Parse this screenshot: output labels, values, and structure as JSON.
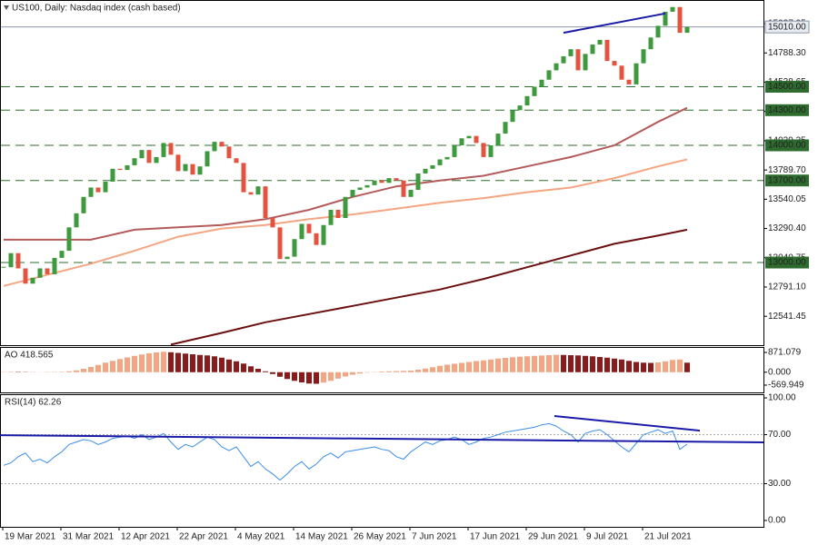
{
  "chart_data": {
    "type": "candlestick",
    "title": "US100, Daily:  Nasdaq index (cash based)",
    "categories": [
      "19 Mar 2021",
      null,
      null,
      null,
      null,
      null,
      null,
      null,
      "31 Mar 2021",
      null,
      null,
      null,
      null,
      null,
      null,
      null,
      "12 Apr 2021",
      null,
      null,
      null,
      null,
      null,
      null,
      null,
      "22 Apr 2021",
      null,
      null,
      null,
      null,
      null,
      null,
      null,
      "4 May 2021",
      null,
      null,
      null,
      null,
      null,
      null,
      null,
      "14 May 2021",
      null,
      null,
      null,
      null,
      null,
      null,
      null,
      "26 May 2021",
      null,
      null,
      null,
      null,
      null,
      null,
      null,
      "7 Jun 2021",
      null,
      null,
      null,
      null,
      null,
      null,
      null,
      "17 Jun 2021",
      null,
      null,
      null,
      null,
      null,
      null,
      null,
      "29 Jun 2021",
      null,
      null,
      null,
      null,
      null,
      null,
      null,
      "9 Jul 2021",
      null,
      null,
      null,
      null,
      null,
      null,
      null,
      "21 Jul 2021",
      null,
      null,
      null,
      null,
      null,
      null
    ],
    "close": [
      12960,
      13080,
      12950,
      12820,
      12870,
      12950,
      12900,
      13040,
      13100,
      13300,
      13420,
      13560,
      13640,
      13600,
      13690,
      13800,
      13790,
      13830,
      13890,
      13960,
      13850,
      13900,
      14020,
      13920,
      13780,
      13840,
      13750,
      13820,
      13950,
      14030,
      13990,
      13890,
      13850,
      13600,
      13580,
      13650,
      13380,
      13300,
      13030,
      13050,
      13200,
      13330,
      13250,
      13150,
      13320,
      13450,
      13380,
      13560,
      13620,
      13640,
      13660,
      13700,
      13680,
      13720,
      13700,
      13560,
      13620,
      13760,
      13800,
      13830,
      13880,
      13900,
      14000,
      14060,
      14080,
      14020,
      13900,
      14000,
      14100,
      14200,
      14300,
      14340,
      14420,
      14500,
      14560,
      14640,
      14700,
      14760,
      14820,
      14640,
      14780,
      14860,
      14900,
      14720,
      14680,
      14560,
      14520,
      14700,
      14820,
      14920,
      15020,
      15140,
      15180,
      14960,
      15010
    ],
    "up_color": "#3d9a3d",
    "down_color": "#e5533f",
    "ylim": [
      12295,
      15240
    ],
    "yticks": [
      {
        "value": 12541.45,
        "label": "12541.45"
      },
      {
        "value": 12791.1,
        "label": "12791.10"
      },
      {
        "value": 13040.75,
        "label": "13040.75"
      },
      {
        "value": 13290.4,
        "label": "13290.40"
      },
      {
        "value": 13540.05,
        "label": "13540.05"
      },
      {
        "value": 13789.7,
        "label": "13789.70"
      },
      {
        "value": 14039.35,
        "label": "14039.35"
      },
      {
        "value": 14289,
        "label": "14289.00"
      },
      {
        "value": 14538.65,
        "label": "14538.65"
      },
      {
        "value": 14788.3,
        "label": "14788.30"
      },
      {
        "value": 15037.95,
        "label": "15037.95"
      }
    ],
    "levels": [
      {
        "value": 14500,
        "label": "14500.00"
      },
      {
        "value": 14300,
        "label": "14300.00"
      },
      {
        "value": 14000,
        "label": "14000.00"
      },
      {
        "value": 13700,
        "label": "13700.00"
      },
      {
        "value": 13000,
        "label": "13000.00"
      }
    ],
    "level_color": "#2e6b2e",
    "price_line": {
      "value": 15010,
      "label": "15010.00"
    },
    "moving_averages": [
      {
        "color": "#b55a5a",
        "x": [
          0,
          12,
          18,
          24,
          30,
          36,
          42,
          48,
          54,
          60,
          66,
          72,
          78,
          84,
          90,
          94
        ],
        "values": [
          13195,
          13195,
          13280,
          13300,
          13320,
          13370,
          13450,
          13560,
          13650,
          13700,
          13740,
          13820,
          13900,
          14000,
          14200,
          14320
        ]
      },
      {
        "color": "#f4a582",
        "x": [
          0,
          12,
          18,
          24,
          30,
          36,
          42,
          48,
          54,
          60,
          66,
          72,
          78,
          84,
          90,
          94
        ],
        "values": [
          12800,
          12990,
          13100,
          13220,
          13290,
          13320,
          13370,
          13410,
          13460,
          13510,
          13550,
          13600,
          13640,
          13720,
          13820,
          13880
        ]
      },
      {
        "color": "#6b0f0f",
        "x": [
          23,
          30,
          36,
          42,
          48,
          54,
          60,
          66,
          72,
          78,
          84,
          90,
          94
        ],
        "values": [
          12300,
          12400,
          12490,
          12560,
          12630,
          12700,
          12770,
          12860,
          12960,
          13060,
          13160,
          13230,
          13280
        ]
      }
    ],
    "trendlines": [
      {
        "color": "#1a1aa8",
        "x": [
          77,
          91
        ],
        "values": [
          14960,
          15125
        ]
      }
    ],
    "indicators": [
      {
        "type": "histogram",
        "label": "AO 418.565",
        "up_color": "#f4a582",
        "down_color": "#8b1a1a",
        "ylim": [
          -890,
          1111
        ],
        "yticks": [
          871.079,
          {
            "value": 0,
            "label": "0.000"
          },
          -569.949
        ],
        "values": [
          10,
          20,
          15,
          10,
          5,
          5,
          10,
          15,
          20,
          40,
          80,
          150,
          230,
          320,
          420,
          500,
          580,
          650,
          720,
          780,
          830,
          870,
          900,
          880,
          850,
          820,
          790,
          760,
          740,
          700,
          640,
          560,
          480,
          380,
          260,
          150,
          40,
          -80,
          -200,
          -300,
          -380,
          -450,
          -500,
          -510,
          -460,
          -380,
          -280,
          -190,
          -110,
          -60,
          -20,
          10,
          30,
          40,
          50,
          60,
          70,
          110,
          160,
          220,
          280,
          330,
          370,
          410,
          450,
          490,
          520,
          560,
          600,
          630,
          660,
          680,
          700,
          720,
          735,
          750,
          765,
          760,
          750,
          740,
          720,
          700,
          670,
          640,
          600,
          560,
          500,
          450,
          420,
          410,
          430,
          480,
          540,
          560,
          418.565
        ]
      },
      {
        "type": "line",
        "label": "RSI(14) 62.26",
        "color": "#3c8ee6",
        "ylim": [
          -5.2,
          103
        ],
        "yticks": [
          {
            "value": 100,
            "label": "100.00"
          },
          {
            "value": 70,
            "label": "70.00",
            "guide": true
          },
          {
            "value": 30,
            "label": "30.00",
            "guide": true
          },
          {
            "value": 0,
            "label": "0.00"
          }
        ],
        "values": [
          45,
          47,
          52,
          55,
          48,
          50,
          47,
          52,
          56,
          62,
          64,
          66,
          65,
          62,
          64,
          67,
          68,
          69,
          67,
          70,
          66,
          68,
          71,
          64,
          58,
          62,
          60,
          64,
          68,
          66,
          60,
          57,
          60,
          52,
          44,
          48,
          42,
          38,
          33,
          38,
          44,
          48,
          42,
          46,
          52,
          55,
          51,
          56,
          57,
          58,
          59,
          60,
          58,
          57,
          52,
          50,
          56,
          60,
          64,
          62,
          65,
          66,
          68,
          66,
          62,
          64,
          67,
          68,
          70,
          72,
          73,
          74,
          75,
          76,
          78,
          79,
          77,
          73,
          70,
          64,
          71,
          73,
          74,
          70,
          65,
          60,
          56,
          63,
          70,
          72,
          74,
          71,
          73,
          58,
          62.26
        ],
        "trendlines": [
          {
            "color": "#1a1aa8",
            "x": [
              -0.5,
              104.5
            ],
            "values": [
              69.6,
              63.7
            ]
          },
          {
            "color": "#1a1aa8",
            "x": [
              75.75,
              95.75
            ],
            "values": [
              85.2,
              73.3
            ]
          }
        ]
      }
    ]
  }
}
